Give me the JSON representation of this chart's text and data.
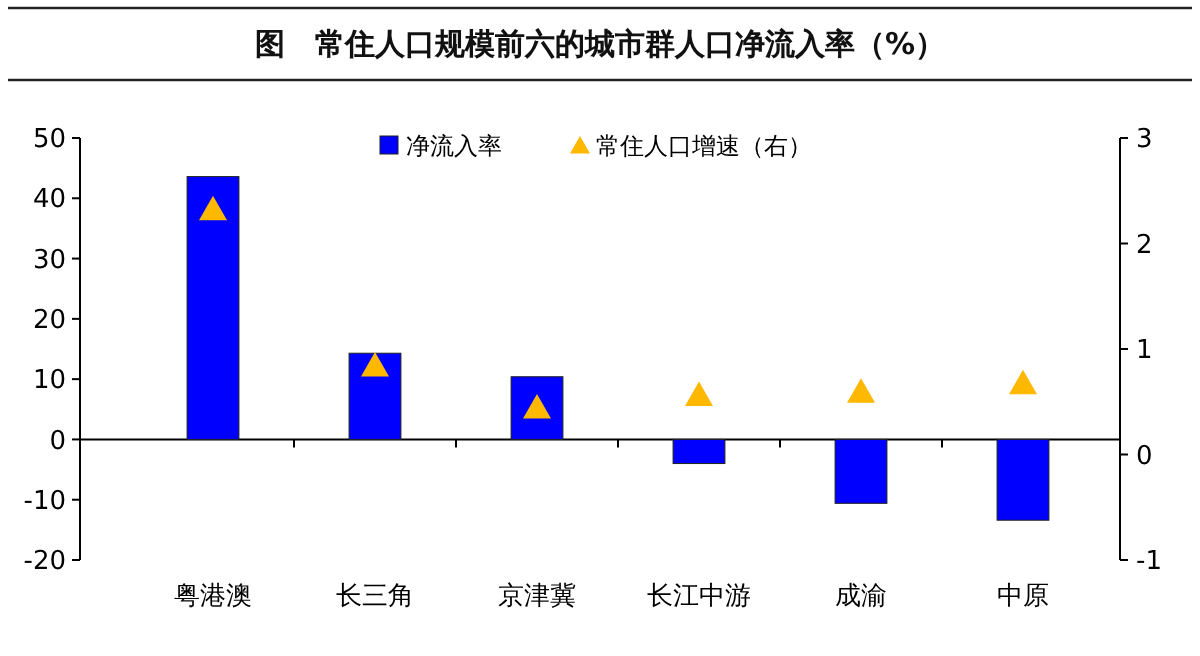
{
  "chart_data": {
    "type": "bar",
    "title": "图　常住人口规模前六的城市群人口净流入率（%）",
    "categories": [
      "粤港澳",
      "长三角",
      "京津冀",
      "长江中游",
      "成渝",
      "中原"
    ],
    "series": [
      {
        "name": "净流入率",
        "color": "#0000ff",
        "values": [
          43.6,
          14.3,
          10.4,
          -4,
          -10.6,
          -13.4
        ]
      },
      {
        "name": "常住人口增速（右）",
        "type": "scatter",
        "axis": "y2",
        "marker": "triangle",
        "color": "#ffb800",
        "values": [
          2.32,
          0.84,
          0.44,
          0.56,
          0.59,
          0.67
        ]
      }
    ],
    "ylim": [
      -20,
      50
    ],
    "yticks": [
      -20,
      -10,
      0,
      10,
      20,
      30,
      40,
      50
    ],
    "y2lim": [
      -1,
      3
    ],
    "y2ticks": [
      -1,
      0,
      1,
      2,
      3
    ],
    "legend": "top right"
  }
}
